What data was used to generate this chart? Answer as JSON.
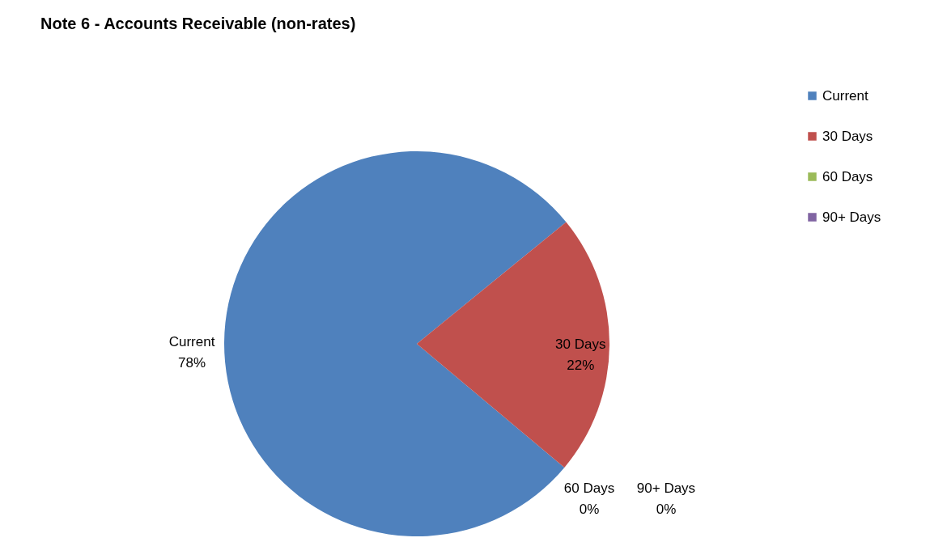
{
  "chart_data": {
    "type": "pie",
    "title": "Note 6 - Accounts Receivable (non-rates)",
    "categories": [
      "Current",
      "30 Days",
      "60 Days",
      "90+ Days"
    ],
    "values": [
      78,
      22,
      0,
      0
    ],
    "colors": [
      "#4f81bd",
      "#c0504d",
      "#9bbb59",
      "#8064a2"
    ],
    "value_labels": [
      "78%",
      "22%",
      "0%",
      "0%"
    ],
    "legend": "top right"
  }
}
